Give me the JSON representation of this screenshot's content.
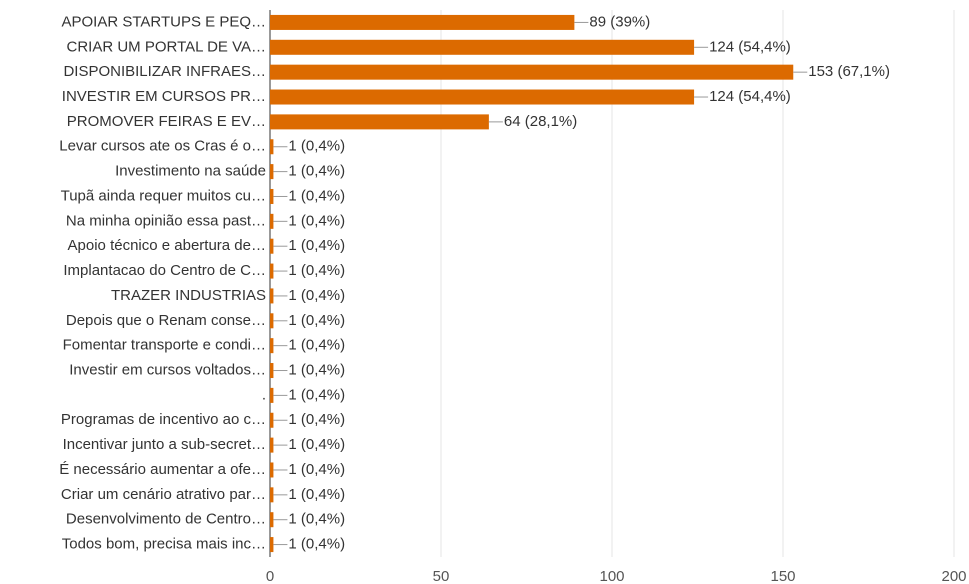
{
  "chart_data": {
    "type": "bar",
    "orientation": "horizontal",
    "categories": [
      "APOIAR STARTUPS E PEQ…",
      "CRIAR UM PORTAL DE VA…",
      "DISPONIBILIZAR INFRAES…",
      "INVESTIR EM CURSOS PR…",
      "PROMOVER FEIRAS E EV…",
      "Levar cursos ate os Cras é o…",
      "Investimento na saúde",
      "Tupã ainda requer muitos cu…",
      "Na minha opinião essa past…",
      "Apoio técnico e abertura de…",
      "Implantacao do Centro de C…",
      "TRAZER INDUSTRIAS",
      "Depois que o Renam conse…",
      "Fomentar transporte e condi…",
      "Investir em cursos voltados…",
      ".",
      "Programas de incentivo ao c…",
      "Incentivar junto a sub-secret…",
      "É necessário aumentar a ofe…",
      "Criar um cenário atrativo par…",
      "Desenvolvimento de Centro…",
      "Todos bom, precisa mais inc…"
    ],
    "values": [
      89,
      124,
      153,
      124,
      64,
      1,
      1,
      1,
      1,
      1,
      1,
      1,
      1,
      1,
      1,
      1,
      1,
      1,
      1,
      1,
      1,
      1
    ],
    "value_labels": [
      "89 (39%)",
      "124 (54,4%)",
      "153 (67,1%)",
      "124 (54,4%)",
      "64 (28,1%)",
      "1 (0,4%)",
      "1 (0,4%)",
      "1 (0,4%)",
      "1 (0,4%)",
      "1 (0,4%)",
      "1 (0,4%)",
      "1 (0,4%)",
      "1 (0,4%)",
      "1 (0,4%)",
      "1 (0,4%)",
      "1 (0,4%)",
      "1 (0,4%)",
      "1 (0,4%)",
      "1 (0,4%)",
      "1 (0,4%)",
      "1 (0,4%)",
      "1 (0,4%)"
    ],
    "color": "#dc6a00",
    "xlim": [
      0,
      200
    ],
    "xticks": [
      0,
      50,
      100,
      150,
      200
    ],
    "grid": true
  }
}
